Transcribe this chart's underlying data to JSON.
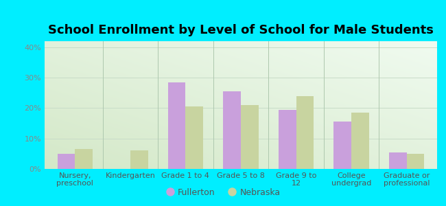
{
  "title": "School Enrollment by Level of School for Male Students",
  "categories": [
    "Nursery,\npreschool",
    "Kindergarten",
    "Grade 1 to 4",
    "Grade 5 to 8",
    "Grade 9 to\n12",
    "College\nundergrad",
    "Graduate or\nprofessional"
  ],
  "fullerton": [
    5.0,
    0.0,
    28.5,
    25.5,
    19.5,
    15.5,
    5.5
  ],
  "nebraska": [
    6.5,
    6.0,
    20.5,
    21.0,
    24.0,
    18.5,
    5.0
  ],
  "fullerton_color": "#c9a0dc",
  "nebraska_color": "#c8d4a0",
  "background_color": "#00eeff",
  "plot_bg_topleft": "#d4e8c8",
  "plot_bg_bottomright": "#f0fbf0",
  "ylim": [
    0,
    42
  ],
  "yticks": [
    0,
    10,
    20,
    30,
    40
  ],
  "ytick_labels": [
    "0%",
    "10%",
    "20%",
    "30%",
    "40%"
  ],
  "legend_fullerton": "Fullerton",
  "legend_nebraska": "Nebraska",
  "bar_width": 0.32,
  "title_fontsize": 13,
  "tick_fontsize": 8,
  "legend_fontsize": 9,
  "separator_color": "#aec8ae",
  "grid_color": "#c8dcc8"
}
